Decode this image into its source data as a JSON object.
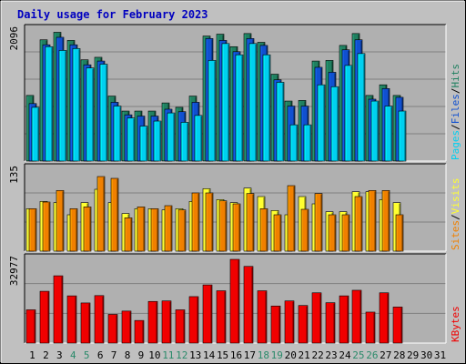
{
  "chart_data": {
    "type": "bar",
    "title": "Daily usage for February 2023",
    "colors": {
      "background": "#c0c0c0",
      "plot_background": "#b0b0b0",
      "gridline": "#808080",
      "title_text": "#0000c0",
      "hits": "#208060",
      "files": "#1050d0",
      "pages": "#00d0f0",
      "visits": "#ffff30",
      "sites": "#f08000",
      "kbytes": "#f00000",
      "day_default": "#000000",
      "day_weekend": "#2a8a6a"
    },
    "x": {
      "days": [
        "1",
        "2",
        "3",
        "4",
        "5",
        "6",
        "7",
        "8",
        "9",
        "10",
        "11",
        "12",
        "13",
        "14",
        "15",
        "16",
        "17",
        "18",
        "19",
        "20",
        "21",
        "22",
        "23",
        "24",
        "25",
        "26",
        "27",
        "28",
        "29",
        "30",
        "31"
      ],
      "weekend_days": [
        "4",
        "5",
        "11",
        "12",
        "18",
        "19",
        "25",
        "26"
      ]
    },
    "panels": [
      {
        "name": "hits-files-pages",
        "ymax_label": "2096",
        "ymax": 2096,
        "right_labels": [
          {
            "text": "Pages",
            "color_key": "pages"
          },
          {
            "text": "/",
            "color_key": "day_default"
          },
          {
            "text": "Files",
            "color_key": "files"
          },
          {
            "text": "/",
            "color_key": "day_default"
          },
          {
            "text": "Hits",
            "color_key": "hits"
          }
        ],
        "series": [
          {
            "name": "Hits",
            "color_key": "hits",
            "values": [
              1050,
              1940,
              2060,
              1930,
              1620,
              1660,
              1040,
              800,
              800,
              800,
              930,
              860,
              1040,
              2000,
              2030,
              1830,
              2040,
              1900,
              1390,
              960,
              970,
              1600,
              1610,
              1850,
              2040,
              1050,
              1220,
              1050
            ]
          },
          {
            "name": "Files",
            "color_key": "files",
            "values": [
              920,
              1860,
              1980,
              1860,
              1540,
              1600,
              940,
              740,
              720,
              720,
              830,
              790,
              940,
              1960,
              1930,
              1750,
              1960,
              1850,
              1300,
              880,
              880,
              1500,
              1420,
              1780,
              1940,
              990,
              1160,
              1020
            ]
          },
          {
            "name": "Pages",
            "color_key": "pages",
            "values": [
              860,
              1830,
              1770,
              1800,
              1490,
              1550,
              880,
              690,
              560,
              640,
              770,
              620,
              730,
              1610,
              1880,
              1700,
              1880,
              1700,
              1260,
              580,
              580,
              1220,
              1190,
              1530,
              1720,
              960,
              880,
              800
            ]
          }
        ]
      },
      {
        "name": "visits-sites",
        "ymax_label": "135",
        "ymax": 135,
        "right_labels": [
          {
            "text": "Sites",
            "color_key": "sites"
          },
          {
            "text": "/",
            "color_key": "day_default"
          },
          {
            "text": "Visits",
            "color_key": "visits"
          }
        ],
        "series": [
          {
            "name": "Visits",
            "color_key": "visits",
            "values": [
              70,
              82,
              80,
              60,
              80,
              102,
              80,
              62,
              70,
              70,
              68,
              70,
              82,
              103,
              85,
              80,
              104,
              90,
              67,
              60,
              90,
              78,
              65,
              65,
              98,
              98,
              85,
              80
            ]
          },
          {
            "name": "Sites",
            "color_key": "sites",
            "values": [
              70,
              81,
              100,
              70,
              73,
              123,
              120,
              55,
              73,
              70,
              75,
              68,
              96,
              96,
              83,
              78,
              95,
              70,
              60,
              108,
              69,
              95,
              60,
              60,
              90,
              100,
              100,
              60
            ]
          }
        ]
      },
      {
        "name": "kbytes",
        "ymax_label": "32977",
        "ymax": 32977,
        "right_labels": [
          {
            "text": "KBytes",
            "color_key": "kbytes"
          }
        ],
        "series": [
          {
            "name": "KBytes",
            "color_key": "kbytes",
            "values": [
              13100,
              20400,
              26500,
              18600,
              15800,
              18700,
              11300,
              12600,
              8900,
              16400,
              16600,
              13100,
              18300,
              22900,
              20600,
              32977,
              30200,
              20600,
              14600,
              16600,
              14800,
              19800,
              15900,
              18600,
              20800,
              12200,
              19800,
              14200
            ]
          }
        ]
      }
    ]
  }
}
